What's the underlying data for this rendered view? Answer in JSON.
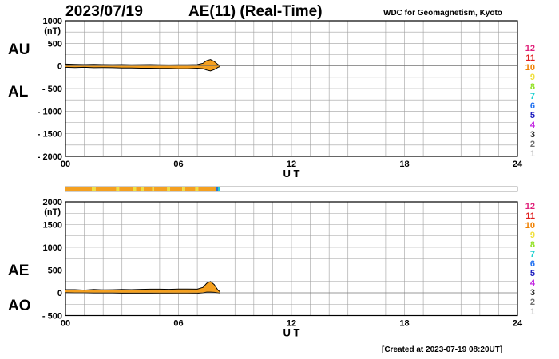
{
  "header": {
    "date": "2023/07/19",
    "title": "AE(11) (Real-Time)",
    "source": "WDC for Geomagnetism, Kyoto"
  },
  "footer": {
    "created": "[Created at 2023-07-19 08:20UT]"
  },
  "colors": {
    "fill": "#f4a020",
    "outline": "#000000",
    "status_orange": "#f4a020",
    "status_yellow": "#f0e040",
    "status_blue": "#3070d0",
    "grid": "#a0a0a0"
  },
  "station_count_legend": [
    {
      "label": "12",
      "color": "#e0207a"
    },
    {
      "label": "11",
      "color": "#e02020"
    },
    {
      "label": "10",
      "color": "#f08000"
    },
    {
      "label": "9",
      "color": "#f0e040"
    },
    {
      "label": "8",
      "color": "#90e020"
    },
    {
      "label": "7",
      "color": "#20d0d0"
    },
    {
      "label": "6",
      "color": "#2070f0"
    },
    {
      "label": "5",
      "color": "#2020c0"
    },
    {
      "label": "4",
      "color": "#c020e0"
    },
    {
      "label": "3",
      "color": "#202020"
    },
    {
      "label": "2",
      "color": "#707070"
    },
    {
      "label": "1",
      "color": "#c8c8c8"
    }
  ],
  "status_bar": {
    "segments": [
      {
        "from": 0.0,
        "to": 1.4,
        "color": "#f4a020"
      },
      {
        "from": 1.4,
        "to": 1.6,
        "color": "#f0e040"
      },
      {
        "from": 1.6,
        "to": 2.7,
        "color": "#f4a020"
      },
      {
        "from": 2.7,
        "to": 2.85,
        "color": "#f0e040"
      },
      {
        "from": 2.85,
        "to": 3.6,
        "color": "#f4a020"
      },
      {
        "from": 3.6,
        "to": 3.75,
        "color": "#f0e040"
      },
      {
        "from": 3.75,
        "to": 4.0,
        "color": "#f4a020"
      },
      {
        "from": 4.0,
        "to": 4.15,
        "color": "#f0e040"
      },
      {
        "from": 4.15,
        "to": 4.6,
        "color": "#f4a020"
      },
      {
        "from": 4.6,
        "to": 4.7,
        "color": "#f0e040"
      },
      {
        "from": 4.7,
        "to": 5.4,
        "color": "#f4a020"
      },
      {
        "from": 5.4,
        "to": 5.55,
        "color": "#f0e040"
      },
      {
        "from": 5.55,
        "to": 6.2,
        "color": "#f4a020"
      },
      {
        "from": 6.2,
        "to": 6.35,
        "color": "#f0e040"
      },
      {
        "from": 6.35,
        "to": 6.9,
        "color": "#f4a020"
      },
      {
        "from": 6.9,
        "to": 7.05,
        "color": "#f0e040"
      },
      {
        "from": 7.05,
        "to": 8.0,
        "color": "#f4a020"
      },
      {
        "from": 8.0,
        "to": 8.1,
        "color": "#3070d0"
      },
      {
        "from": 8.1,
        "to": 8.2,
        "color": "#20d0d0"
      }
    ]
  },
  "chart_data": [
    {
      "type": "area",
      "xlabel": "U T",
      "ylabel_unit": "(nT)",
      "xlim": [
        0,
        24
      ],
      "ylim": [
        -2000,
        1000
      ],
      "xticks": [
        "00",
        "06",
        "12",
        "18",
        "24"
      ],
      "xtick_values": [
        0,
        6,
        12,
        18,
        24
      ],
      "yticks": [
        "1000",
        "500",
        "0",
        "- 500",
        "- 1000",
        "- 1500",
        "- 2000"
      ],
      "ytick_values": [
        1000,
        500,
        0,
        -500,
        -1000,
        -1500,
        -2000
      ],
      "grid": true,
      "side_labels": [
        "AU",
        "AL"
      ],
      "x": [
        0,
        0.5,
        1,
        1.5,
        2,
        2.5,
        3,
        3.5,
        4,
        4.5,
        5,
        5.5,
        6,
        6.5,
        7,
        7.3,
        7.5,
        7.7,
        7.9,
        8.1,
        8.2
      ],
      "series": [
        {
          "name": "AU",
          "values": [
            40,
            35,
            30,
            35,
            30,
            28,
            30,
            25,
            28,
            30,
            25,
            22,
            25,
            25,
            30,
            60,
            120,
            140,
            100,
            30,
            10
          ]
        },
        {
          "name": "AL",
          "values": [
            -30,
            -35,
            -30,
            -40,
            -35,
            -40,
            -45,
            -45,
            -50,
            -50,
            -55,
            -55,
            -60,
            -60,
            -50,
            -60,
            -90,
            -110,
            -80,
            -30,
            -15
          ]
        }
      ]
    },
    {
      "type": "area",
      "xlabel": "U T",
      "ylabel_unit": "(nT)",
      "xlim": [
        0,
        24
      ],
      "ylim": [
        -500,
        2000
      ],
      "xticks": [
        "00",
        "06",
        "12",
        "18",
        "24"
      ],
      "xtick_values": [
        0,
        6,
        12,
        18,
        24
      ],
      "yticks": [
        "2000",
        "1500",
        "1000",
        "500",
        "0",
        "- 500"
      ],
      "ytick_values": [
        2000,
        1500,
        1000,
        500,
        0,
        -500
      ],
      "grid": true,
      "side_labels": [
        "AE",
        "AO"
      ],
      "x": [
        0,
        0.5,
        1,
        1.5,
        2,
        2.5,
        3,
        3.5,
        4,
        4.5,
        5,
        5.5,
        6,
        6.5,
        7,
        7.3,
        7.5,
        7.7,
        7.9,
        8.1,
        8.2
      ],
      "series": [
        {
          "name": "AE",
          "values": [
            70,
            70,
            60,
            75,
            65,
            68,
            75,
            70,
            78,
            80,
            80,
            77,
            85,
            85,
            80,
            120,
            210,
            250,
            180,
            60,
            25
          ]
        },
        {
          "name": "AO",
          "values": [
            5,
            0,
            0,
            -3,
            -3,
            -6,
            -8,
            -10,
            -11,
            -10,
            -15,
            -16,
            -18,
            -18,
            -10,
            0,
            15,
            15,
            10,
            0,
            -3
          ]
        }
      ]
    }
  ]
}
